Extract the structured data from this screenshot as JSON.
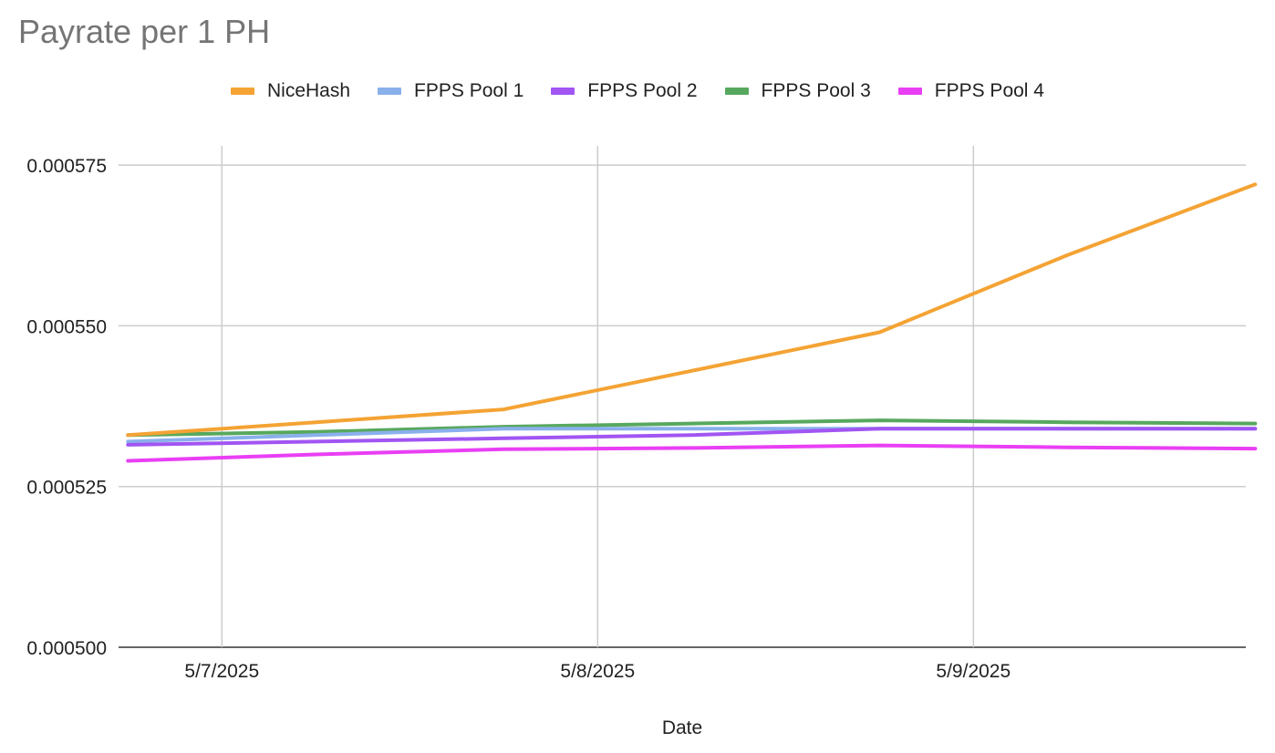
{
  "chart_data": {
    "type": "line",
    "title": "Payrate per 1 PH",
    "xlabel": "Date",
    "ylabel": "",
    "ylim": [
      0.0005,
      0.000578
    ],
    "y_ticks": [
      "0.000500",
      "0.000525",
      "0.000550",
      "0.000575"
    ],
    "y_tick_values": [
      0.0005,
      0.000525,
      0.00055,
      0.000575
    ],
    "x_tick_labels": [
      "5/7/2025",
      "5/8/2025",
      "5/9/2025"
    ],
    "x": [
      0,
      1,
      2,
      3,
      4,
      5,
      6
    ],
    "x_tick_positions": [
      0.5,
      2.5,
      4.5
    ],
    "xlim": [
      -0.05,
      5.95
    ],
    "grid": true,
    "legend_position": "top",
    "series": [
      {
        "name": "NiceHash",
        "color": "#f4a334",
        "values": [
          0.000533,
          0.000535,
          0.000537,
          0.000543,
          0.000549,
          0.000561,
          0.000572
        ]
      },
      {
        "name": "FPPS Pool 1",
        "color": "#8ab0ec",
        "values": [
          0.000532,
          0.000533,
          0.000534,
          0.000534,
          0.000534,
          0.000534,
          0.000534
        ]
      },
      {
        "name": "FPPS Pool 2",
        "color": "#a155f2",
        "values": [
          0.0005315,
          0.000532,
          0.0005325,
          0.000533,
          0.000534,
          0.000534,
          0.000534
        ]
      },
      {
        "name": "FPPS Pool 3",
        "color": "#57a85e",
        "values": [
          0.000533,
          0.0005335,
          0.0005343,
          0.0005348,
          0.0005353,
          0.000535,
          0.0005348
        ]
      },
      {
        "name": "FPPS Pool 4",
        "color": "#e93ff4",
        "values": [
          0.000529,
          0.00053,
          0.0005308,
          0.000531,
          0.0005314,
          0.0005311,
          0.0005309
        ]
      }
    ]
  }
}
